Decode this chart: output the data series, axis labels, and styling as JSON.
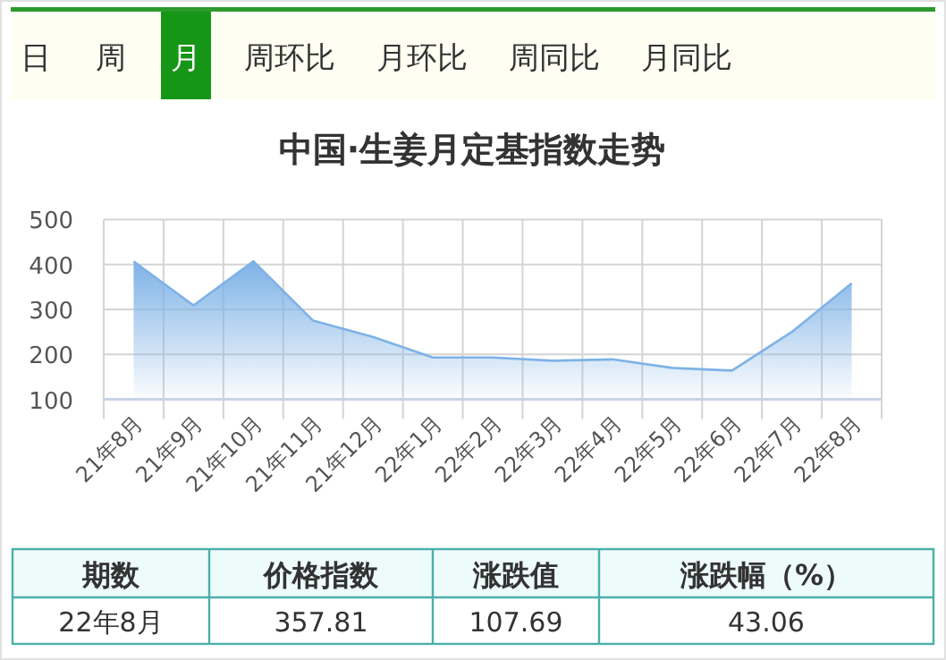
{
  "chart_data": [
    {
      "type": "other",
      "categories": [
        "日",
        "周",
        "月",
        "周环比",
        "月环比",
        "周同比",
        "月同比"
      ],
      "colors": [
        null,
        null,
        "#169616",
        null,
        null,
        null,
        null
      ]
    },
    {
      "type": "area",
      "title": "中国·生姜月定基指数走势",
      "categories": [
        "21年8月",
        "21年9月",
        "21年10月",
        "21年11月",
        "21年12月",
        "22年1月",
        "22年2月",
        "22年3月",
        "22年4月",
        "22年5月",
        "22年6月",
        "22年7月",
        "22年8月"
      ],
      "series": [
        {
          "color": "#7eb2e6",
          "values": [
            407,
            309,
            407,
            275,
            239,
            193,
            193,
            186,
            189,
            170,
            164,
            250,
            358
          ]
        }
      ],
      "ylim": [
        100,
        500
      ],
      "yticks": [
        100,
        200,
        300,
        400,
        500
      ],
      "grid": true
    },
    {
      "type": "other",
      "categories": [
        "期数",
        "价格指数",
        "涨跌值",
        "涨跌幅（%）"
      ],
      "annotations": [
        "22年8月",
        "357.81",
        "107.69",
        "43.06"
      ]
    }
  ]
}
